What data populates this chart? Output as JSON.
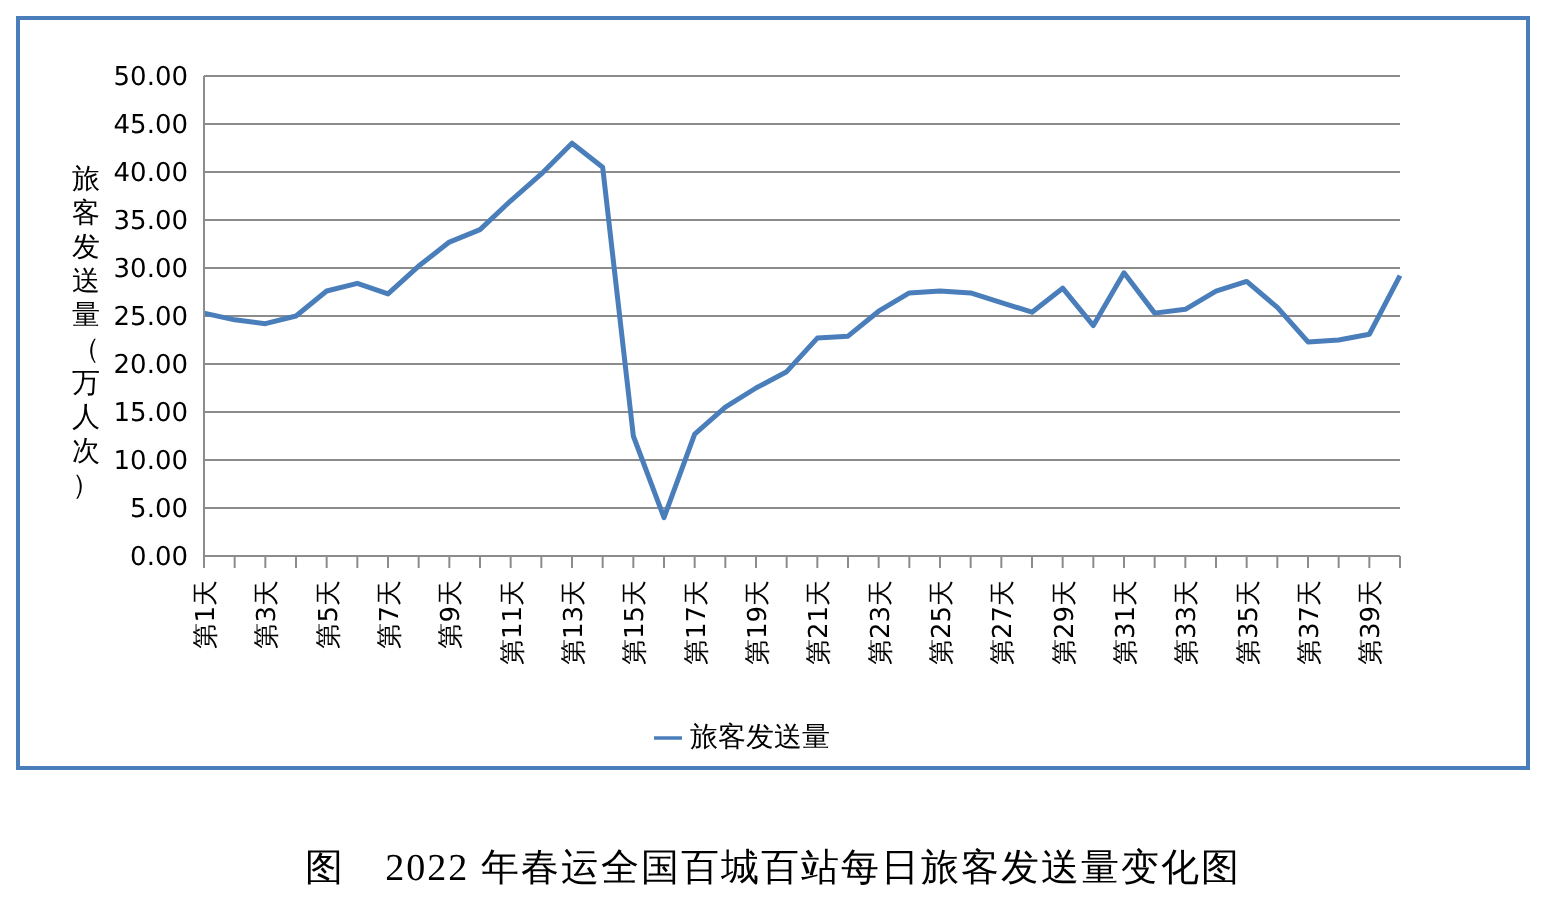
{
  "chart_data": {
    "type": "line",
    "ylabel": "旅客发送量（万人次）",
    "annotations": [
      "图　2022 年春运全国百城百站每日旅客发送量变化图"
    ],
    "categories": [
      "第1天",
      null,
      "第3天",
      null,
      "第5天",
      null,
      "第7天",
      null,
      "第9天",
      null,
      "第11天",
      null,
      "第13天",
      null,
      "第15天",
      null,
      "第17天",
      null,
      "第19天",
      null,
      "第21天",
      null,
      "第23天",
      null,
      "第25天",
      null,
      "第27天",
      null,
      "第29天",
      null,
      "第31天",
      null,
      "第33天",
      null,
      "第35天",
      null,
      "第37天",
      null,
      "第39天",
      null
    ],
    "series": [
      {
        "name": "旅客发送量",
        "color": "#4a7ebb",
        "values": [
          25.3,
          24.6,
          24.2,
          25.0,
          27.6,
          28.4,
          27.3,
          30.2,
          32.7,
          34.0,
          37.0,
          39.8,
          43.0,
          40.5,
          12.5,
          4.0,
          12.7,
          15.5,
          17.5,
          19.2,
          22.7,
          22.9,
          25.5,
          27.4,
          27.6,
          27.4,
          26.4,
          25.4,
          27.9,
          24.0,
          29.5,
          25.3,
          25.7,
          27.6,
          28.6,
          25.9,
          22.3,
          22.5,
          23.1,
          29.2
        ]
      }
    ],
    "ylim": [
      0,
      50
    ],
    "yticks": [
      {
        "value": 0,
        "label": "0.00"
      },
      {
        "value": 5,
        "label": "5.00"
      },
      {
        "value": 10,
        "label": "10.00"
      },
      {
        "value": 15,
        "label": "15.00"
      },
      {
        "value": 20,
        "label": "20.00"
      },
      {
        "value": 25,
        "label": "25.00"
      },
      {
        "value": 30,
        "label": "30.00"
      },
      {
        "value": 35,
        "label": "35.00"
      },
      {
        "value": 40,
        "label": "40.00"
      },
      {
        "value": 45,
        "label": "45.00"
      },
      {
        "value": 50,
        "label": "50.00"
      }
    ],
    "grid": "y",
    "legend": "bottom",
    "marker": "none",
    "line_style": "solid"
  }
}
